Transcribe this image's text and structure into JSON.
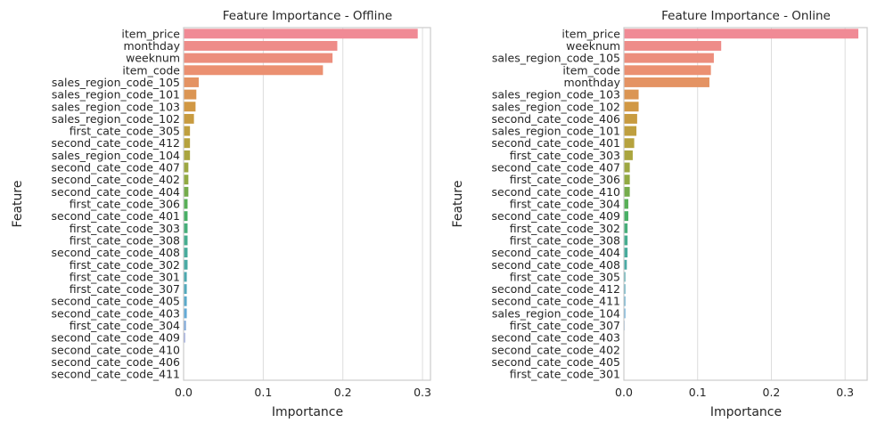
{
  "chart_data": [
    {
      "type": "bar",
      "orientation": "horizontal",
      "title": "Feature Importance - Offline",
      "xlabel": "Importance",
      "ylabel": "Feature",
      "xlim": [
        0,
        0.31
      ],
      "xticks": [
        "0.0",
        "0.1",
        "0.2",
        "0.3"
      ],
      "grid": "vertical",
      "categories": [
        "item_price",
        "monthday",
        "weeknum",
        "item_code",
        "sales_region_code_105",
        "sales_region_code_101",
        "sales_region_code_103",
        "sales_region_code_102",
        "first_cate_code_305",
        "second_cate_code_412",
        "sales_region_code_104",
        "second_cate_code_407",
        "second_cate_code_402",
        "second_cate_code_404",
        "first_cate_code_306",
        "second_cate_code_401",
        "first_cate_code_303",
        "first_cate_code_308",
        "second_cate_code_408",
        "first_cate_code_302",
        "first_cate_code_301",
        "first_cate_code_307",
        "second_cate_code_405",
        "second_cate_code_403",
        "first_cate_code_304",
        "second_cate_code_409",
        "second_cate_code_410",
        "second_cate_code_406",
        "second_cate_code_411"
      ],
      "values": [
        0.294,
        0.193,
        0.187,
        0.175,
        0.019,
        0.016,
        0.015,
        0.013,
        0.008,
        0.008,
        0.008,
        0.006,
        0.006,
        0.006,
        0.005,
        0.005,
        0.005,
        0.005,
        0.005,
        0.005,
        0.004,
        0.004,
        0.004,
        0.004,
        0.003,
        0.002,
        0.0005,
        0.0003,
        0.0002
      ]
    },
    {
      "type": "bar",
      "orientation": "horizontal",
      "title": "Feature Importance - Online",
      "xlabel": "Importance",
      "ylabel": "Feature",
      "xlim": [
        0,
        0.33
      ],
      "xticks": [
        "0.0",
        "0.1",
        "0.2",
        "0.3"
      ],
      "grid": "vertical",
      "categories": [
        "item_price",
        "weeknum",
        "sales_region_code_105",
        "item_code",
        "monthday",
        "sales_region_code_103",
        "sales_region_code_102",
        "second_cate_code_406",
        "sales_region_code_101",
        "second_cate_code_401",
        "first_cate_code_303",
        "second_cate_code_407",
        "first_cate_code_306",
        "second_cate_code_410",
        "first_cate_code_304",
        "second_cate_code_409",
        "first_cate_code_302",
        "first_cate_code_308",
        "second_cate_code_404",
        "second_cate_code_408",
        "first_cate_code_305",
        "second_cate_code_412",
        "second_cate_code_411",
        "sales_region_code_104",
        "first_cate_code_307",
        "second_cate_code_403",
        "second_cate_code_402",
        "second_cate_code_405",
        "first_cate_code_301"
      ],
      "values": [
        0.318,
        0.132,
        0.122,
        0.118,
        0.116,
        0.02,
        0.02,
        0.018,
        0.017,
        0.014,
        0.012,
        0.008,
        0.008,
        0.008,
        0.006,
        0.006,
        0.005,
        0.005,
        0.005,
        0.004,
        0.002,
        0.002,
        0.002,
        0.002,
        0.001,
        0.0005,
        0.0003,
        0.0002,
        0.0001
      ]
    }
  ]
}
